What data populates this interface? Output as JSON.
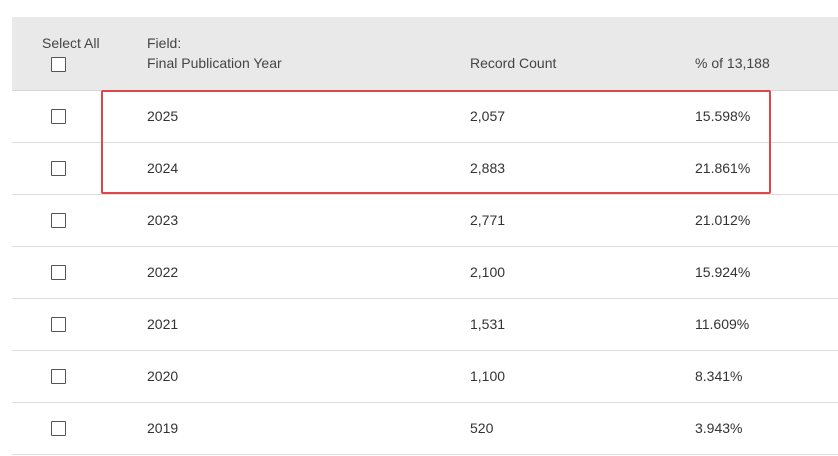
{
  "header": {
    "select_all_label": "Select All",
    "field_label": "Field:",
    "field_name": "Final Publication Year",
    "record_count_label": "Record Count",
    "percent_label": "% of 13,188"
  },
  "rows": [
    {
      "year": "2025",
      "count": "2,057",
      "percent": "15.598%",
      "checked": false
    },
    {
      "year": "2024",
      "count": "2,883",
      "percent": "21.861%",
      "checked": false
    },
    {
      "year": "2023",
      "count": "2,771",
      "percent": "21.012%",
      "checked": false
    },
    {
      "year": "2022",
      "count": "2,100",
      "percent": "15.924%",
      "checked": false
    },
    {
      "year": "2021",
      "count": "1,531",
      "percent": "11.609%",
      "checked": false
    },
    {
      "year": "2020",
      "count": "1,100",
      "percent": "8.341%",
      "checked": false
    },
    {
      "year": "2019",
      "count": "520",
      "percent": "3.943%",
      "checked": false
    }
  ],
  "colors": {
    "header_bg": "#e9e9e9",
    "highlight": "#e0474c"
  }
}
